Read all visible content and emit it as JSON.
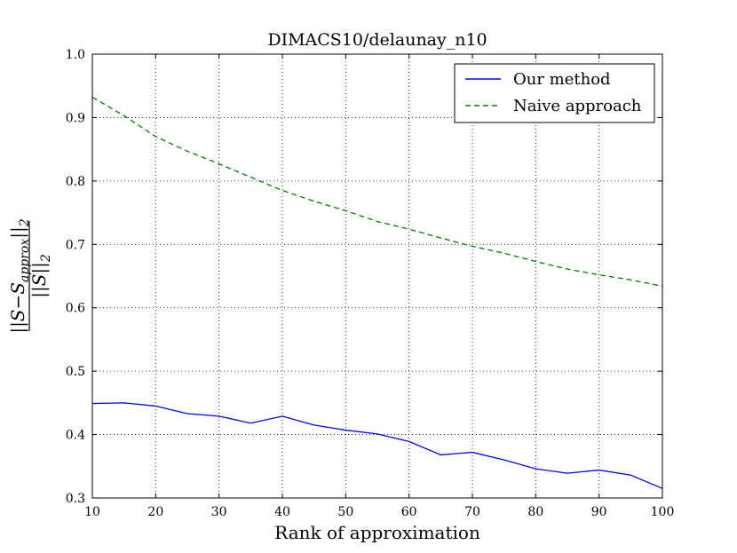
{
  "chart_data": {
    "type": "line",
    "title": "DIMACS10/delaunay_n10",
    "xlabel": "Rank of approximation",
    "ylabel": "||S-S_approx||_2 / ||S||_2",
    "ylabel_numerator": "||S−S",
    "ylabel_numerator_sub": "approx",
    "ylabel_numerator_tail": "||",
    "ylabel_numerator_sub2": "2",
    "ylabel_denominator": "||S||",
    "ylabel_denominator_sub": "2",
    "xlim": [
      10,
      100
    ],
    "ylim": [
      0.3,
      1.0
    ],
    "xticks": [
      10,
      20,
      30,
      40,
      50,
      60,
      70,
      80,
      90,
      100
    ],
    "yticks": [
      0.3,
      0.4,
      0.5,
      0.6,
      0.7,
      0.8,
      0.9,
      1.0
    ],
    "grid": true,
    "legend_position": "top-right",
    "x": [
      10,
      15,
      20,
      25,
      30,
      35,
      40,
      45,
      50,
      55,
      60,
      65,
      70,
      75,
      80,
      85,
      90,
      95,
      100
    ],
    "series": [
      {
        "name": "Our method",
        "color": "#0000ff",
        "style": "solid",
        "values": [
          0.449,
          0.45,
          0.445,
          0.433,
          0.429,
          0.418,
          0.429,
          0.415,
          0.407,
          0.401,
          0.389,
          0.368,
          0.372,
          0.36,
          0.346,
          0.339,
          0.344,
          0.336,
          0.315
        ]
      },
      {
        "name": "Naive approach",
        "color": "#008000",
        "style": "dashed",
        "values": [
          0.932,
          0.903,
          0.87,
          0.847,
          0.827,
          0.806,
          0.785,
          0.768,
          0.753,
          0.736,
          0.724,
          0.71,
          0.697,
          0.686,
          0.673,
          0.661,
          0.652,
          0.644,
          0.634
        ]
      }
    ]
  }
}
